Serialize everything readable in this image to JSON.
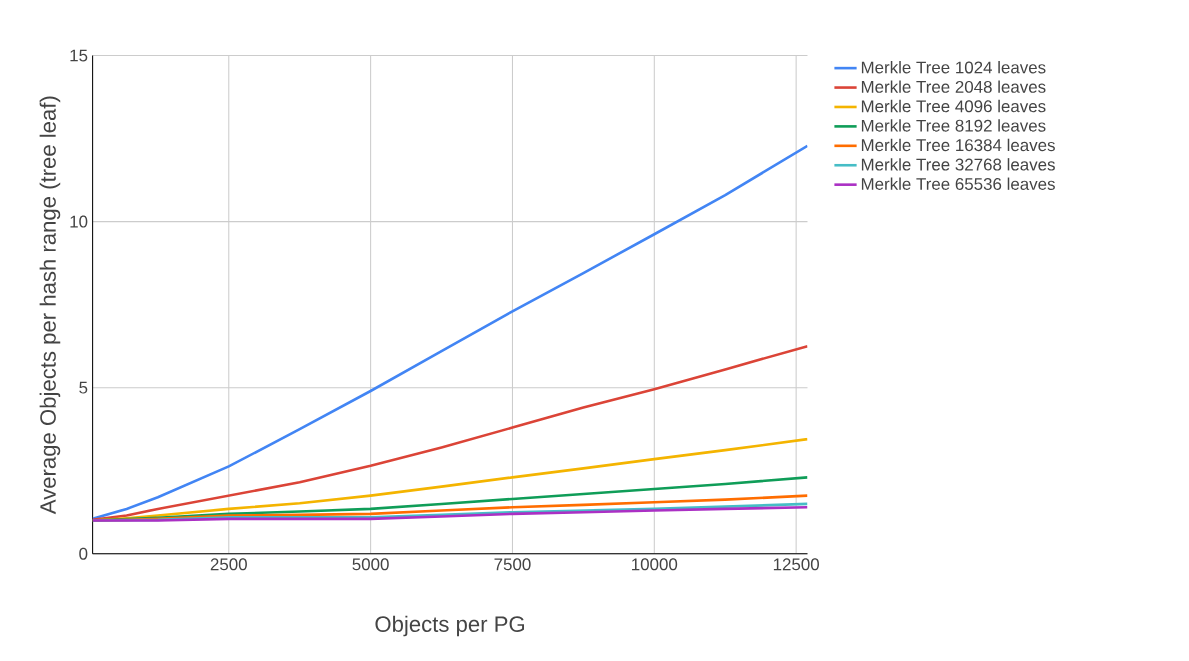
{
  "chart_data": {
    "type": "line",
    "xlabel": "Objects per PG",
    "ylabel": "Average Objects per hash range (tree leaf)",
    "xlim": [
      100,
      12700
    ],
    "ylim": [
      0,
      15
    ],
    "xticks": [
      2500,
      5000,
      7500,
      10000,
      12500
    ],
    "yticks": [
      0,
      5,
      10,
      15
    ],
    "grid": true,
    "legend": "top right",
    "marker": "none",
    "line_style": "solid",
    "x": [
      100,
      700,
      1250,
      2500,
      3750,
      5000,
      6250,
      7500,
      8750,
      10000,
      11250,
      12700
    ],
    "series": [
      {
        "name": "Merkle Tree 1024 leaves",
        "color": "#4285f4",
        "values": [
          1.05,
          1.35,
          1.7,
          2.63,
          3.75,
          4.9,
          6.1,
          7.3,
          8.45,
          9.62,
          10.8,
          12.28
        ]
      },
      {
        "name": "Merkle Tree 2048 leaves",
        "color": "#db4437",
        "values": [
          1.02,
          1.15,
          1.35,
          1.75,
          2.15,
          2.65,
          3.2,
          3.8,
          4.4,
          4.95,
          5.55,
          6.25
        ]
      },
      {
        "name": "Merkle Tree 4096 leaves",
        "color": "#f4b400",
        "values": [
          1.0,
          1.07,
          1.15,
          1.35,
          1.52,
          1.75,
          2.02,
          2.3,
          2.57,
          2.85,
          3.12,
          3.45
        ]
      },
      {
        "name": "Merkle Tree 8192 leaves",
        "color": "#0f9d58",
        "values": [
          1.0,
          null,
          1.08,
          1.2,
          1.27,
          1.35,
          1.5,
          1.65,
          1.8,
          1.95,
          2.1,
          2.3
        ]
      },
      {
        "name": "Merkle Tree 16384 leaves",
        "color": "#ff6d00",
        "values": [
          1.0,
          1.02,
          1.05,
          1.15,
          1.17,
          1.2,
          1.3,
          1.4,
          1.47,
          1.55,
          1.63,
          1.75
        ]
      },
      {
        "name": "Merkle Tree 32768 leaves",
        "color": "#46bdc6",
        "values": [
          1.0,
          null,
          1.02,
          1.1,
          1.1,
          1.1,
          1.17,
          1.25,
          1.3,
          1.35,
          1.42,
          1.5
        ]
      },
      {
        "name": "Merkle Tree 65536 leaves",
        "color": "#ab30c4",
        "values": [
          1.0,
          1.0,
          1.0,
          1.05,
          1.05,
          1.05,
          1.12,
          1.2,
          1.25,
          1.3,
          1.35,
          1.4
        ]
      }
    ]
  }
}
